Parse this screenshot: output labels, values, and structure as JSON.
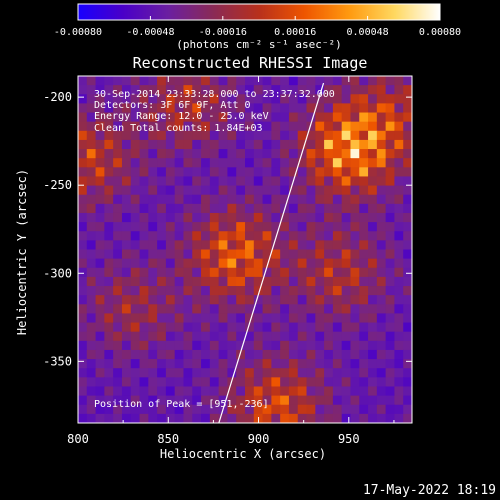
{
  "colorbar": {
    "ticks": [
      "-0.00080",
      "-0.00048",
      "-0.00016",
      "0.00016",
      "0.00048",
      "0.00080"
    ],
    "unit_label": "(photons cm⁻² s⁻¹ asec⁻²)",
    "stops": [
      "#1800ff",
      "#4a00c8",
      "#6b1fa0",
      "#8a2a55",
      "#b8301c",
      "#ee5500",
      "#ff9a10",
      "#ffd860",
      "#ffffff"
    ]
  },
  "plot": {
    "title": "Reconstructed RHESSI Image",
    "xlabel": "Heliocentric X (arcsec)",
    "ylabel": "Heliocentric Y (arcsec)",
    "xlim": [
      800,
      985
    ],
    "ylim": [
      -385,
      -188
    ],
    "xticks": [
      "800",
      "850",
      "900",
      "950"
    ],
    "yticks": [
      "-200",
      "-250",
      "-300",
      "-350"
    ]
  },
  "info": {
    "line1": "30-Sep-2014 23:33:28.000 to 23:37:32.000",
    "line2": "Detectors: 3F 6F 9F, Att 0",
    "line3": "Energy Range: 12.0 - 25.0 keV",
    "line4": "Clean    Total counts: 1.84E+03",
    "peak": "Position of Peak = [951,-236]"
  },
  "footer": {
    "timestamp": "17-May-2022 18:19"
  },
  "chart_data": {
    "type": "heatmap",
    "title": "Reconstructed RHESSI Image",
    "xlabel": "Heliocentric X (arcsec)",
    "ylabel": "Heliocentric Y (arcsec)",
    "xlim": [
      800,
      985
    ],
    "ylim": [
      -385,
      -188
    ],
    "color_range": [
      -0.0008,
      0.0008
    ],
    "limb_line": [
      [
        878,
        -385
      ],
      [
        936,
        -192
      ]
    ],
    "sources": [
      {
        "x": 950,
        "y": -230,
        "intensity": 1.0
      },
      {
        "x": 887,
        "y": -290,
        "intensity": 0.8
      },
      {
        "x": 910,
        "y": -375,
        "intensity": 0.7
      },
      {
        "x": 805,
        "y": -235,
        "intensity": 0.6
      },
      {
        "x": 860,
        "y": -205,
        "intensity": 0.5
      },
      {
        "x": 945,
        "y": -300,
        "intensity": 0.5
      },
      {
        "x": 830,
        "y": -320,
        "intensity": 0.4
      },
      {
        "x": 975,
        "y": -210,
        "intensity": 0.45
      }
    ]
  }
}
